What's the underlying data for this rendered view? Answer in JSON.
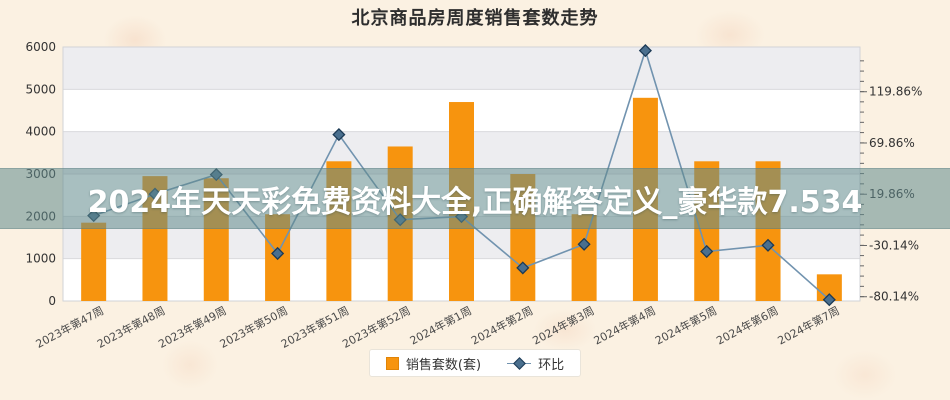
{
  "title": "北京商品房周度销售套数走势",
  "overlay": {
    "text": "2024年天天彩免费资料大全,正确解答定义_豪华款7.534"
  },
  "legend": {
    "bar_label": "销售套数(套)",
    "line_label": "环比"
  },
  "colors": {
    "background": "#fbf1e2",
    "bar": "#F7940E",
    "bar_border": "#e08406",
    "line": "#7193af",
    "marker": "#4a6f8e",
    "marker_border": "#1c3a55",
    "banner_bg": "rgba(96,138,141,0.55)",
    "banner_text": "#ffffff",
    "band_gray": "#ededf0",
    "band_white": "#ffffff",
    "grid": "#d9dadd",
    "plot_border": "#d2d3d7",
    "axis_text": "#333333",
    "x_label_text": "#4a4a4a",
    "tick": "#666666"
  },
  "chart_data": {
    "type": "bar",
    "subtype": "bar+line dual-axis combo",
    "title": "北京商品房周度销售套数走势",
    "categories": [
      "2023年第47周",
      "2023年第48周",
      "2023年第49周",
      "2023年第50周",
      "2023年第51周",
      "2023年第52周",
      "2024年第1周",
      "2024年第2周",
      "2024年第3周",
      "2024年第4周",
      "2024年第5周",
      "2024年第6周",
      "2024年第7周"
    ],
    "series": [
      {
        "name": "销售套数(套)",
        "type": "bar",
        "axis": "left",
        "values": [
          1850,
          2950,
          2900,
          2050,
          3300,
          3650,
          4700,
          3000,
          2050,
          4800,
          3300,
          3300,
          630
        ]
      },
      {
        "name": "环比",
        "type": "line",
        "axis": "right",
        "unit": "%",
        "values": [
          -1,
          20,
          39,
          -38,
          78,
          -5,
          -2,
          -52,
          -29,
          160,
          -36,
          -30,
          -83
        ]
      }
    ],
    "left_axis": {
      "min": 0,
      "max": 6000,
      "tick_step": 1000,
      "labels": [
        "0",
        "1000",
        "2000",
        "3000",
        "4000",
        "5000",
        "6000"
      ]
    },
    "right_axis": {
      "min": -84.3,
      "max": 163.5,
      "tick_labels": [
        "119.86%",
        "69.86%",
        "19.86%",
        "-30.14%",
        "-80.14%"
      ],
      "tick_values": [
        119.86,
        69.86,
        19.86,
        -30.14,
        -80.14
      ],
      "minor_tick_step": 10,
      "minor_tick_top": 150,
      "minor_tick_bottom": -80
    },
    "legend_position": "bottom",
    "grid": "on",
    "plot_bands": "alternating gray/white per 1000"
  }
}
